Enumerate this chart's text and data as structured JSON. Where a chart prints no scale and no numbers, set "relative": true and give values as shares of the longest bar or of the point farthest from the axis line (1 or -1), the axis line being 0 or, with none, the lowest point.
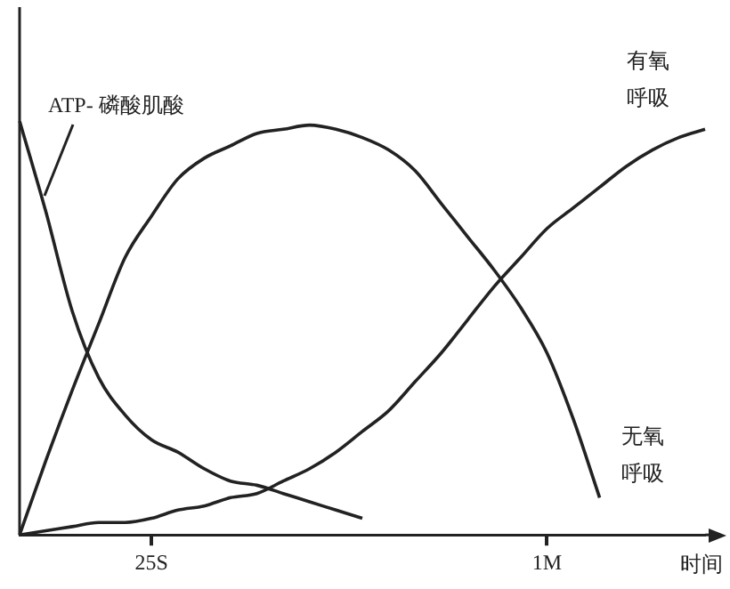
{
  "chart_data": {
    "type": "line",
    "relative": true,
    "xlabel": "时间",
    "categories": [
      null,
      null,
      null,
      null,
      null,
      "25S",
      null,
      null,
      null,
      null,
      null,
      null,
      null,
      null,
      null,
      null,
      null,
      null,
      null,
      null,
      "1M",
      null,
      null,
      null,
      null,
      null,
      null
    ],
    "grid": false,
    "legend": false,
    "marker": "none",
    "line_style": "solid",
    "series": [
      {
        "name": "ATP- 磷酸肌酸",
        "color": "#222222",
        "values": [
          1.0,
          0.78,
          0.54,
          0.38,
          0.29,
          0.23,
          0.2,
          0.16,
          0.13,
          0.12,
          0.1,
          0.08,
          0.06,
          0.04,
          null,
          null,
          null,
          null,
          null,
          null,
          null,
          null,
          null,
          null,
          null,
          null,
          null
        ]
      },
      {
        "name": "无氧呼吸",
        "color": "#222222",
        "values": [
          0,
          0.18,
          0.35,
          0.51,
          0.67,
          0.77,
          0.86,
          0.91,
          0.94,
          0.97,
          0.98,
          0.99,
          0.98,
          0.96,
          0.93,
          0.88,
          0.8,
          0.72,
          0.64,
          0.55,
          0.44,
          0.28,
          0.09,
          null,
          null,
          null,
          null
        ]
      },
      {
        "name": "有氧呼吸",
        "color": "#222222",
        "values": [
          0,
          0.01,
          0.02,
          0.03,
          0.03,
          0.04,
          0.06,
          0.07,
          0.09,
          0.1,
          0.13,
          0.16,
          0.2,
          0.25,
          0.3,
          0.37,
          0.44,
          0.52,
          0.6,
          0.67,
          0.74,
          0.79,
          0.84,
          0.89,
          0.93,
          0.96,
          0.98
        ]
      }
    ]
  }
}
